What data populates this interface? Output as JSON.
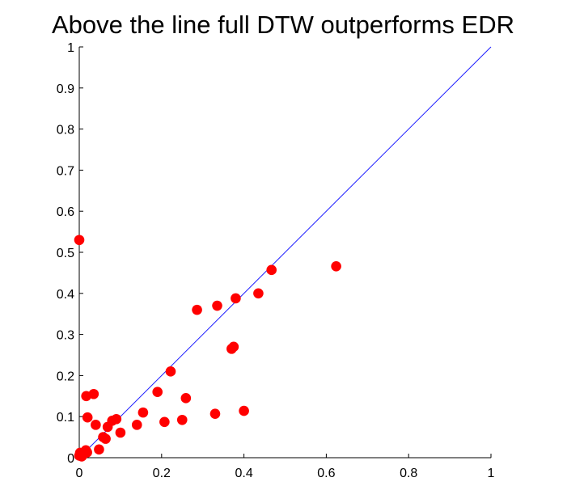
{
  "chart_data": {
    "type": "scatter",
    "title": "Above the line  full DTW  outperforms  EDR",
    "xlabel": "",
    "ylabel": "",
    "xlim": [
      0,
      1
    ],
    "ylim": [
      0,
      1
    ],
    "x_ticks": [
      "0",
      "0.2",
      "0.4",
      "0.6",
      "0.8",
      "1"
    ],
    "y_ticks": [
      "0",
      "0.1",
      "0.2",
      "0.3",
      "0.4",
      "0.5",
      "0.6",
      "0.7",
      "0.8",
      "0.9",
      "1"
    ],
    "grid": false,
    "reference_line": {
      "from": [
        0,
        0
      ],
      "to": [
        1,
        1
      ],
      "color": "#1c1cff"
    },
    "marker_color": "#ff0000",
    "points": [
      {
        "x": 0.0,
        "y": 0.53
      },
      {
        "x": 0.0,
        "y": 0.005
      },
      {
        "x": 0.002,
        "y": 0.012
      },
      {
        "x": 0.006,
        "y": 0.003
      },
      {
        "x": 0.01,
        "y": 0.008
      },
      {
        "x": 0.016,
        "y": 0.018
      },
      {
        "x": 0.019,
        "y": 0.013
      },
      {
        "x": 0.017,
        "y": 0.15
      },
      {
        "x": 0.02,
        "y": 0.098
      },
      {
        "x": 0.035,
        "y": 0.155
      },
      {
        "x": 0.04,
        "y": 0.08
      },
      {
        "x": 0.048,
        "y": 0.02
      },
      {
        "x": 0.058,
        "y": 0.05
      },
      {
        "x": 0.064,
        "y": 0.046
      },
      {
        "x": 0.069,
        "y": 0.075
      },
      {
        "x": 0.08,
        "y": 0.09
      },
      {
        "x": 0.09,
        "y": 0.094
      },
      {
        "x": 0.1,
        "y": 0.061
      },
      {
        "x": 0.14,
        "y": 0.08
      },
      {
        "x": 0.155,
        "y": 0.11
      },
      {
        "x": 0.19,
        "y": 0.16
      },
      {
        "x": 0.207,
        "y": 0.087
      },
      {
        "x": 0.222,
        "y": 0.21
      },
      {
        "x": 0.25,
        "y": 0.092
      },
      {
        "x": 0.259,
        "y": 0.145
      },
      {
        "x": 0.286,
        "y": 0.36
      },
      {
        "x": 0.33,
        "y": 0.107
      },
      {
        "x": 0.335,
        "y": 0.37
      },
      {
        "x": 0.37,
        "y": 0.265
      },
      {
        "x": 0.375,
        "y": 0.27
      },
      {
        "x": 0.38,
        "y": 0.388
      },
      {
        "x": 0.4,
        "y": 0.114
      },
      {
        "x": 0.435,
        "y": 0.4
      },
      {
        "x": 0.467,
        "y": 0.457
      },
      {
        "x": 0.624,
        "y": 0.466
      }
    ]
  }
}
